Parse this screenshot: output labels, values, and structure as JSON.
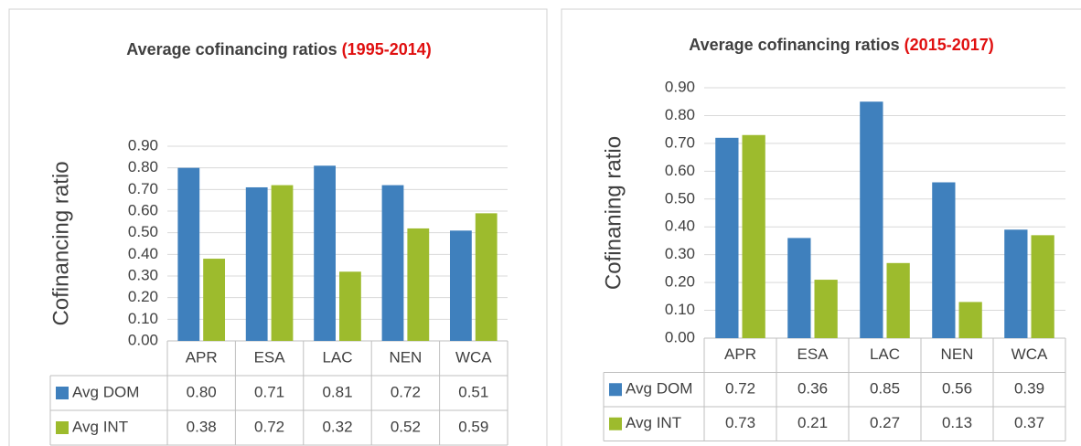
{
  "chart_data": [
    {
      "type": "bar",
      "title": "Average cofinancing ratios",
      "title_period": "(1995-2014)",
      "y_label": "Cofinancing ratio",
      "categories": [
        "APR",
        "ESA",
        "LAC",
        "NEN",
        "WCA"
      ],
      "series": [
        {
          "name": "Avg DOM",
          "color": "#3f80bd",
          "values": [
            0.8,
            0.71,
            0.81,
            0.72,
            0.51
          ],
          "value_labels": [
            "0.80",
            "0.71",
            "0.81",
            "0.72",
            "0.51"
          ]
        },
        {
          "name": "Avg INT",
          "color": "#9dbb2d",
          "values": [
            0.38,
            0.72,
            0.32,
            0.52,
            0.59
          ],
          "value_labels": [
            "0.38",
            "0.72",
            "0.32",
            "0.52",
            "0.59"
          ]
        }
      ],
      "ylim": [
        0,
        0.9
      ],
      "yticks": [
        {
          "value": 0,
          "label": "0.00"
        },
        {
          "value": 0.1,
          "label": "0.10"
        },
        {
          "value": 0.2,
          "label": "0.20"
        },
        {
          "value": 0.3,
          "label": "0.30"
        },
        {
          "value": 0.4,
          "label": "0.40"
        },
        {
          "value": 0.5,
          "label": "0.50"
        },
        {
          "value": 0.6,
          "label": "0.60"
        },
        {
          "value": 0.7,
          "label": "0.70"
        },
        {
          "value": 0.8,
          "label": "0.80"
        },
        {
          "value": 0.9,
          "label": "0.90"
        }
      ],
      "grid": true
    },
    {
      "type": "bar",
      "title": "Average cofinancing ratios",
      "title_period": "(2015-2017)",
      "y_label": "Cofinaning ratio",
      "categories": [
        "APR",
        "ESA",
        "LAC",
        "NEN",
        "WCA"
      ],
      "series": [
        {
          "name": "Avg DOM",
          "color": "#3f80bd",
          "values": [
            0.72,
            0.36,
            0.85,
            0.56,
            0.39
          ],
          "value_labels": [
            "0.72",
            "0.36",
            "0.85",
            "0.56",
            "0.39"
          ]
        },
        {
          "name": "Avg INT",
          "color": "#9dbb2d",
          "values": [
            0.73,
            0.21,
            0.27,
            0.13,
            0.37
          ],
          "value_labels": [
            "0.73",
            "0.21",
            "0.27",
            "0.13",
            "0.37"
          ]
        }
      ],
      "ylim": [
        0,
        0.9
      ],
      "yticks": [
        {
          "value": 0,
          "label": "0.00"
        },
        {
          "value": 0.1,
          "label": "0.10"
        },
        {
          "value": 0.2,
          "label": "0.20"
        },
        {
          "value": 0.3,
          "label": "0.30"
        },
        {
          "value": 0.4,
          "label": "0.40"
        },
        {
          "value": 0.5,
          "label": "0.50"
        },
        {
          "value": 0.6,
          "label": "0.60"
        },
        {
          "value": 0.7,
          "label": "0.70"
        },
        {
          "value": 0.8,
          "label": "0.80"
        },
        {
          "value": 0.9,
          "label": "0.90"
        }
      ],
      "grid": true
    }
  ]
}
